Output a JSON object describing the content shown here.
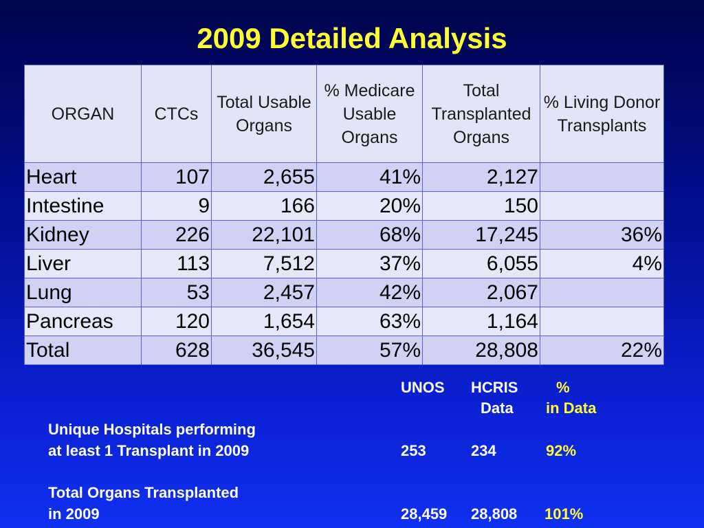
{
  "title": "2009 Detailed Analysis",
  "table": {
    "headers": [
      "ORGAN",
      "CTCs",
      "Total Usable Organs",
      "% Medicare Usable Organs",
      "Total Transplanted Organs",
      "% Living Donor Transplants"
    ],
    "rows": [
      [
        "Heart",
        "107",
        "2,655",
        "41%",
        "2,127",
        ""
      ],
      [
        "Intestine",
        "9",
        "166",
        "20%",
        "150",
        ""
      ],
      [
        "Kidney",
        "226",
        "22,101",
        "68%",
        "17,245",
        "36%"
      ],
      [
        "Liver",
        "113",
        "7,512",
        "37%",
        "6,055",
        "4%"
      ],
      [
        "Lung",
        "53",
        "2,457",
        "42%",
        "2,067",
        ""
      ],
      [
        "Pancreas",
        "120",
        "1,654",
        "63%",
        "1,164",
        ""
      ],
      [
        "Total",
        "628",
        "36,545",
        "57%",
        "28,808",
        "22%"
      ]
    ]
  },
  "comparison": {
    "col_unos": "UNOS",
    "col_hcris_line1": "HCRIS",
    "col_hcris_line2": "Data",
    "col_pct_line1": "%",
    "col_pct_line2": "in Data",
    "rows": [
      {
        "label_line1": "Unique Hospitals performing",
        "label_line2": "at least 1 Transplant in 2009",
        "unos": "253",
        "hcris": "234",
        "pct": "92%"
      },
      {
        "label_line1": "Total Organs Transplanted",
        "label_line2": "in 2009",
        "unos": "28,459",
        "hcris": "28,808",
        "pct": "101%"
      }
    ]
  },
  "colors": {
    "title": "#ffff33",
    "background_top": "#00044a",
    "background_bottom": "#1030f0",
    "table_row": "#cfd2f3",
    "table_row_alt": "#e6e8f9",
    "table_border": "#5a5fd0"
  }
}
